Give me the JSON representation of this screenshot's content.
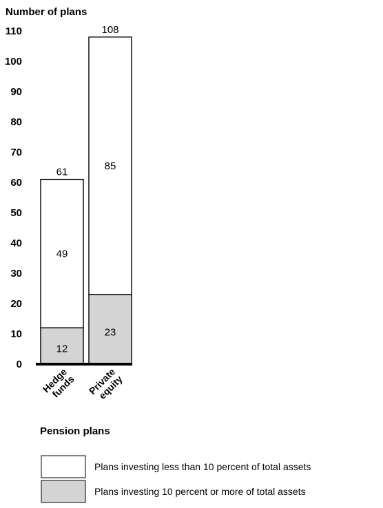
{
  "chart_data": {
    "type": "bar",
    "stacked": true,
    "title": "",
    "ylabel": "Number of plans",
    "xlabel": "Pension plans",
    "ylim": [
      0,
      110
    ],
    "y_ticks": [
      "0",
      "10",
      "20",
      "30",
      "40",
      "50",
      "60",
      "70",
      "80",
      "90",
      "100",
      "110"
    ],
    "grid": false,
    "legend_position": "bottom",
    "categories": [
      "Hedge funds",
      "Private equity"
    ],
    "category_lines": [
      [
        "Hedge",
        "funds"
      ],
      [
        "Private",
        "equity"
      ]
    ],
    "totals": [
      61,
      108
    ],
    "series": [
      {
        "name": "Plans investing 10 percent or more of total assets",
        "values": [
          12,
          23
        ],
        "color": "#d4d4d4"
      },
      {
        "name": "Plans investing less than 10 percent of total assets",
        "values": [
          49,
          85
        ],
        "color": "#ffffff"
      }
    ],
    "legend": [
      {
        "label": "Plans investing less than 10 percent of total assets",
        "color": "#ffffff"
      },
      {
        "label": "Plans investing 10 percent or more of total assets",
        "color": "#d4d4d4"
      }
    ]
  }
}
